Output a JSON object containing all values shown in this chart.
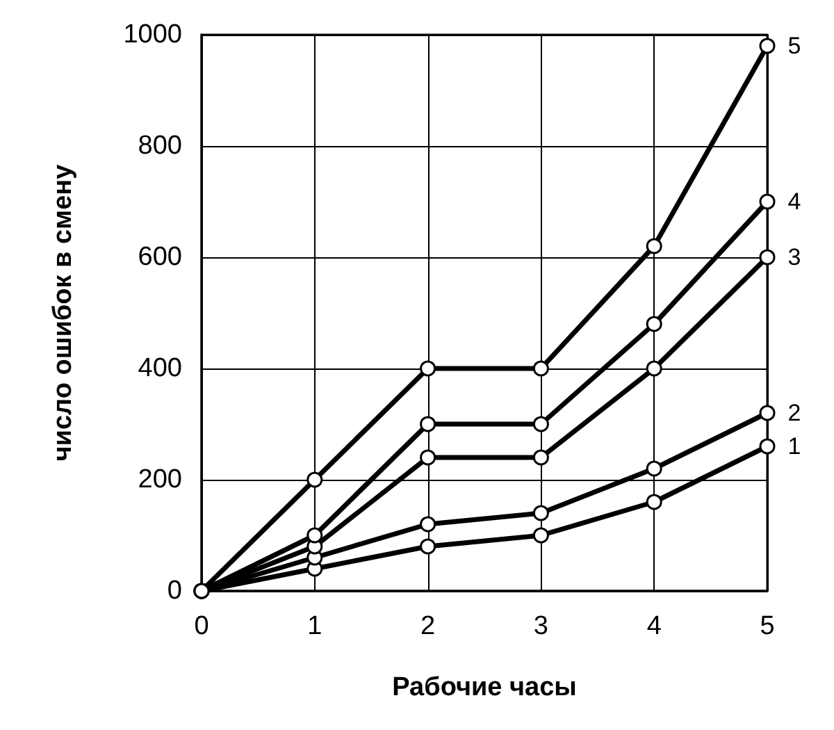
{
  "chart_data": {
    "type": "line",
    "xlabel": "Рабочие часы",
    "ylabel": "число ошибок в смену",
    "x": [
      0,
      1,
      2,
      3,
      4,
      5
    ],
    "series": [
      {
        "name": "1",
        "color": "#000000",
        "values": [
          0,
          40,
          80,
          100,
          160,
          260
        ]
      },
      {
        "name": "2",
        "color": "#000000",
        "values": [
          0,
          60,
          120,
          140,
          220,
          320
        ]
      },
      {
        "name": "3",
        "color": "#000000",
        "values": [
          0,
          80,
          240,
          240,
          400,
          600
        ]
      },
      {
        "name": "4",
        "color": "#000000",
        "values": [
          0,
          100,
          300,
          300,
          480,
          700
        ]
      },
      {
        "name": "5",
        "color": "#000000",
        "values": [
          0,
          200,
          400,
          400,
          620,
          980
        ]
      }
    ],
    "xlim": [
      0,
      5
    ],
    "xticks": [
      0,
      1,
      2,
      3,
      4,
      5
    ],
    "ylim": [
      0,
      1000
    ],
    "yticks": [
      0,
      200,
      400,
      600,
      800,
      1000
    ],
    "grid": true,
    "legend": false,
    "marker": "circle",
    "line_style": "solid"
  }
}
